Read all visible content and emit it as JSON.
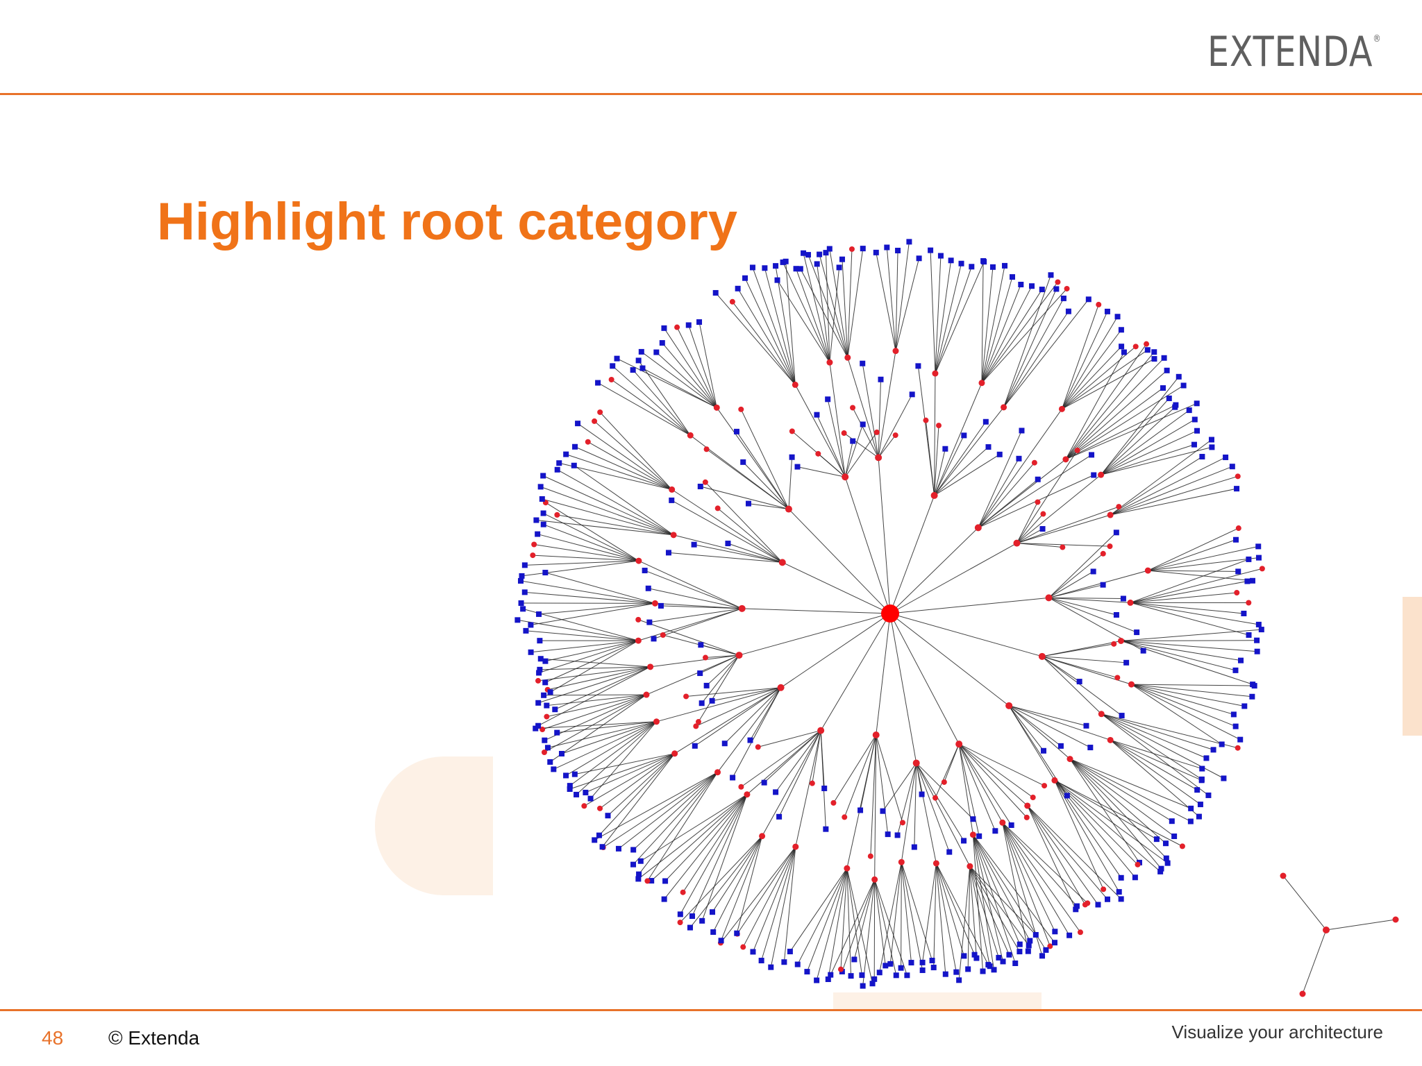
{
  "brand": {
    "logo_text": "EXTENDA",
    "logo_mark": "®",
    "accent_color": "#e8722a"
  },
  "slide": {
    "title": "Highlight root category",
    "number": "48",
    "copyright": "© Extenda",
    "tagline": "Visualize your architecture"
  },
  "graph": {
    "root_color": "#ff0000",
    "category_color": "#e3202a",
    "leaf_color": "#1414c8",
    "edge_color": "#222222"
  }
}
